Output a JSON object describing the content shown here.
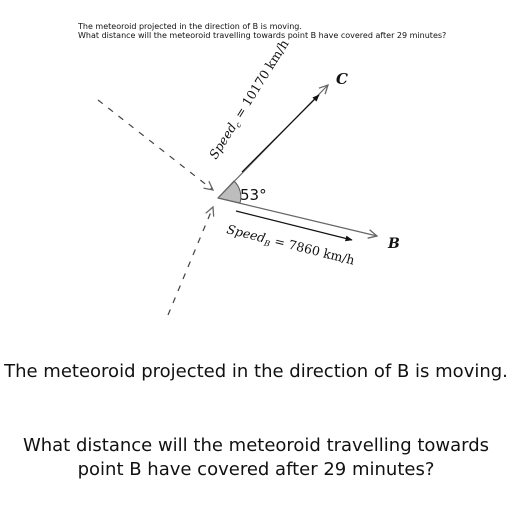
{
  "header": {
    "line1": "The meteoroid projected in the direction of B is moving.",
    "line2": "What distance will the meteoroid travelling towards point B have covered after 29 minutes?"
  },
  "diagram": {
    "angle_label": "53°",
    "point_c": "C",
    "point_b": "B",
    "speed_c": {
      "base": "Speed",
      "sub": "c",
      "rest": " = 10170 km/h"
    },
    "speed_b": {
      "base": "Speed",
      "sub": "B",
      "rest": " = 7860 km/h"
    }
  },
  "statement": {
    "line1": "The meteoroid projected in the direction of B is moving.",
    "line2a": "What distance will the meteoroid travelling towards",
    "line2b": "point B have covered after 29 minutes?"
  }
}
